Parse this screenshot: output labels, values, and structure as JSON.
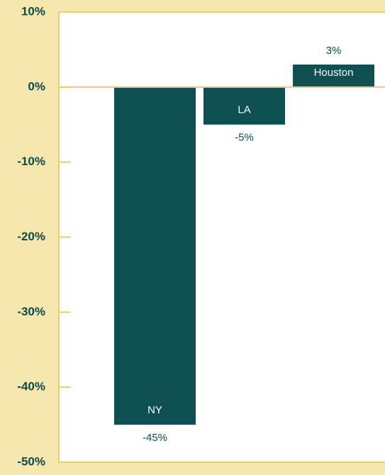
{
  "chart_data": {
    "type": "bar",
    "categories": [
      "NY",
      "LA",
      "Houston"
    ],
    "values": [
      -45,
      -5,
      3
    ],
    "value_labels": [
      "-45%",
      "-5%",
      "3%"
    ],
    "color": "#0d4f52",
    "ylim": [
      -50,
      10
    ],
    "yticks": [
      {
        "value": 10,
        "label": "10%"
      },
      {
        "value": 0,
        "label": "0%"
      },
      {
        "value": -10,
        "label": "-10%"
      },
      {
        "value": -20,
        "label": "-20%"
      },
      {
        "value": -30,
        "label": "-30%"
      },
      {
        "value": -40,
        "label": "-40%"
      },
      {
        "value": -50,
        "label": "-50%"
      }
    ]
  }
}
